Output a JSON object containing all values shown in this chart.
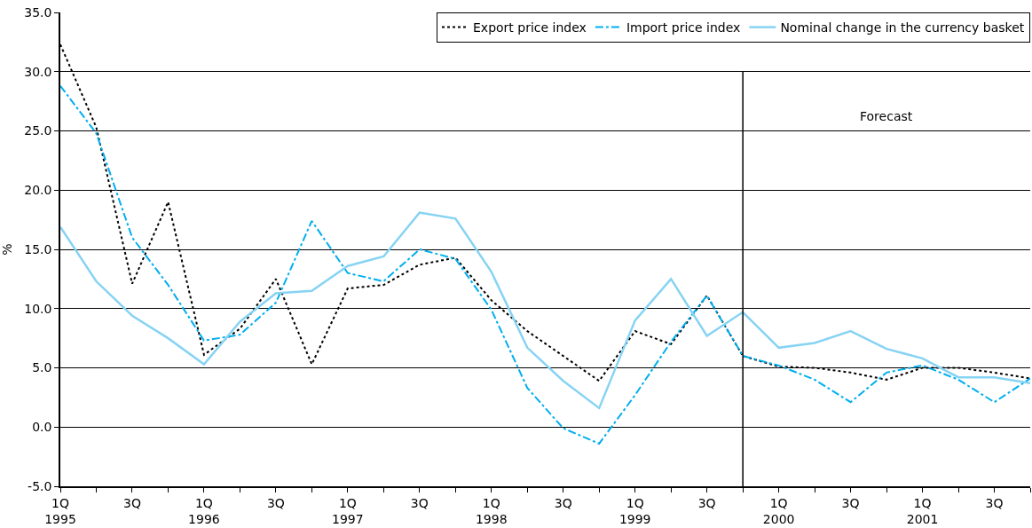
{
  "chart_data": {
    "type": "line",
    "ylabel": "%",
    "categories": [
      "1Q\n1995",
      null,
      "3Q",
      null,
      "1Q\n1996",
      null,
      "3Q",
      null,
      "1Q\n1997",
      null,
      "3Q",
      null,
      "1Q\n1998",
      null,
      "3Q",
      null,
      "1Q\n1999",
      null,
      "3Q",
      null,
      "1Q\n2000",
      null,
      "3Q",
      null,
      "1Q\n2001",
      null,
      "3Q",
      null
    ],
    "series": [
      {
        "name": "Export price index",
        "color": "#000000",
        "line_style": "dotted",
        "values": [
          32.3,
          25.3,
          12.1,
          19.0,
          6.1,
          8.3,
          12.5,
          5.3,
          11.7,
          12.0,
          13.7,
          14.3,
          10.7,
          8.1,
          6.0,
          3.9,
          8.1,
          7.0,
          11.1,
          6.0,
          5.1,
          5.0,
          4.6,
          4.0,
          5.0,
          5.0,
          4.6,
          4.1
        ]
      },
      {
        "name": "Import price index",
        "color": "#00aeef",
        "line_style": "dashdot",
        "values": [
          28.8,
          24.8,
          16.0,
          12.0,
          7.3,
          7.8,
          10.5,
          17.4,
          13.0,
          12.3,
          15.0,
          14.2,
          9.9,
          3.3,
          -0.1,
          -1.4,
          2.7,
          7.2,
          11.1,
          6.0,
          5.2,
          4.0,
          2.1,
          4.6,
          5.2,
          4.0,
          2.1,
          4.1
        ]
      },
      {
        "name": "Nominal change in the currency basket",
        "color": "#87d3f3",
        "line_style": "solid",
        "values": [
          16.9,
          12.3,
          9.4,
          7.5,
          5.3,
          8.9,
          11.3,
          11.5,
          13.6,
          14.4,
          18.1,
          17.6,
          13.1,
          6.7,
          3.9,
          1.6,
          9.0,
          12.5,
          7.7,
          9.7,
          6.7,
          7.1,
          8.1,
          6.6,
          5.8,
          4.2,
          4.2,
          3.7
        ]
      }
    ],
    "ylim": [
      -5,
      35
    ],
    "yticks": [
      {
        "value": -5,
        "label": "-5.0"
      },
      {
        "value": 0,
        "label": "0.0"
      },
      {
        "value": 5,
        "label": "5.0"
      },
      {
        "value": 10,
        "label": "10.0"
      },
      {
        "value": 15,
        "label": "15.0"
      },
      {
        "value": 20,
        "label": "20.0"
      },
      {
        "value": 25,
        "label": "25.0"
      },
      {
        "value": 30,
        "label": "30.0"
      },
      {
        "value": 35,
        "label": "35.0"
      }
    ],
    "grid": "y",
    "legend": "top right",
    "marker": "none",
    "annotations": [
      "Forecast"
    ]
  }
}
